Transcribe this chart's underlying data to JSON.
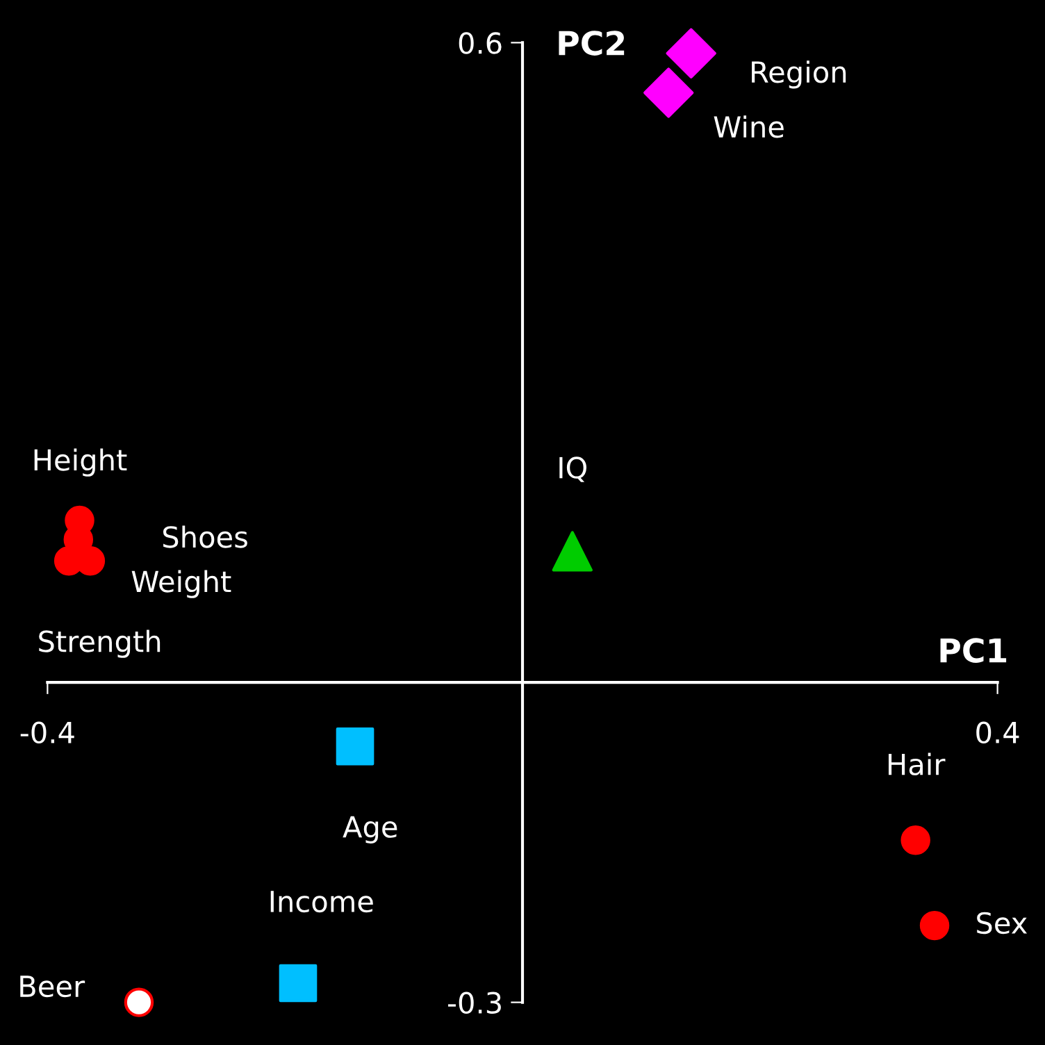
{
  "chart_data": {
    "type": "scatter",
    "xlabel": "PC1",
    "ylabel": "PC2",
    "xlim": [
      -0.44,
      0.44
    ],
    "ylim": [
      -0.34,
      0.64
    ],
    "xticks": [
      -0.4,
      0.4
    ],
    "yticks": [
      0.6,
      -0.3
    ],
    "grid": false,
    "legend": false,
    "series": [
      {
        "color": "#ff0000",
        "marker": "circle",
        "x": [
          -0.373,
          -0.374,
          -0.364,
          -0.382,
          0.331,
          0.347
        ],
        "values": [
          0.152,
          0.134,
          0.114,
          0.114,
          -0.148,
          -0.228
        ]
      },
      {
        "color": "#ff00ff",
        "marker": "diamond",
        "x": [
          0.142,
          0.123
        ],
        "values": [
          0.59,
          0.553
        ]
      },
      {
        "color": "#00cc00",
        "marker": "triangle",
        "x": [
          0.042
        ],
        "values": [
          0.123
        ]
      },
      {
        "color": "#00bfff",
        "marker": "square",
        "x": [
          -0.141,
          -0.189
        ],
        "values": [
          -0.06,
          -0.282
        ]
      },
      {
        "color": "#ffffff",
        "marker": "circle",
        "x": [
          -0.323
        ],
        "values": [
          -0.3
        ]
      }
    ],
    "annotations": [
      {
        "text": "Height",
        "x": -0.373,
        "y": 0.152
      },
      {
        "text": "Shoes",
        "x": -0.374,
        "y": 0.134
      },
      {
        "text": "Weight",
        "x": -0.364,
        "y": 0.114
      },
      {
        "text": "Strength",
        "x": -0.382,
        "y": 0.114
      },
      {
        "text": "Hair",
        "x": 0.331,
        "y": -0.148
      },
      {
        "text": "Sex",
        "x": 0.347,
        "y": -0.228
      },
      {
        "text": "Region",
        "x": 0.142,
        "y": 0.59
      },
      {
        "text": "Wine",
        "x": 0.123,
        "y": 0.553
      },
      {
        "text": "IQ",
        "x": 0.042,
        "y": 0.123
      },
      {
        "text": "Age",
        "x": -0.141,
        "y": -0.06
      },
      {
        "text": "Income",
        "x": -0.189,
        "y": -0.282
      },
      {
        "text": "Beer",
        "x": -0.323,
        "y": -0.3
      }
    ]
  }
}
